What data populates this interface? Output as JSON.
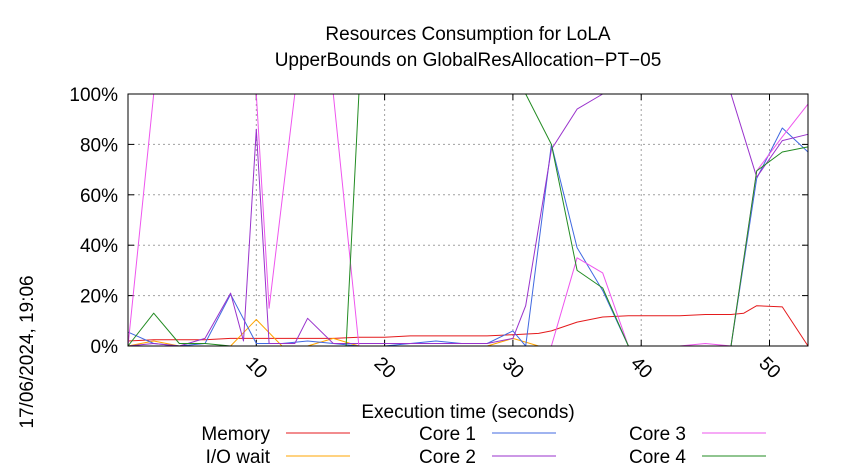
{
  "chart_data": {
    "type": "line",
    "title": "Resources Consumption for LoLA",
    "subtitle": "UpperBounds on GlobalResAllocation−PT−05",
    "xlabel": "Execution time (seconds)",
    "ylabel": "",
    "timestamp": "17/06/2024, 19:06",
    "xlim": [
      0,
      53
    ],
    "ylim": [
      0,
      100
    ],
    "xticks": [
      10,
      20,
      30,
      40,
      50
    ],
    "yticks": [
      0,
      20,
      40,
      60,
      80,
      100
    ],
    "ytick_labels": [
      "0%",
      "20%",
      "40%",
      "60%",
      "80%",
      "100%"
    ],
    "grid": true,
    "legend_position": "bottom",
    "series": [
      {
        "name": "Memory",
        "color": "#e41a1c",
        "x": [
          0,
          2,
          4,
          6,
          8,
          10,
          12,
          14,
          16,
          18,
          20,
          22,
          24,
          26,
          28,
          30,
          32,
          33,
          35,
          37,
          39,
          41,
          43,
          45,
          47,
          48,
          49,
          51,
          53
        ],
        "y": [
          2,
          2.5,
          2.5,
          2.5,
          3,
          3,
          3,
          3,
          3,
          3.5,
          3.5,
          4,
          4,
          4,
          4,
          4.5,
          5,
          6,
          9.5,
          11.5,
          12,
          12,
          12,
          12.5,
          12.5,
          13,
          16,
          15.5,
          0
        ]
      },
      {
        "name": "I/O wait",
        "color": "#ffa500",
        "x": [
          0,
          2,
          4,
          6,
          8,
          10,
          12,
          14,
          16,
          18,
          20,
          22,
          24,
          26,
          28,
          30,
          32,
          34,
          36,
          38,
          40,
          42,
          44,
          46,
          48,
          50,
          52,
          53
        ],
        "y": [
          0,
          2,
          0,
          0,
          0,
          10.5,
          0,
          0,
          3,
          0,
          0,
          0,
          0,
          0,
          0,
          3,
          0,
          0,
          0,
          0,
          0,
          0,
          0,
          0,
          0,
          0,
          0,
          0
        ]
      },
      {
        "name": "Core 1",
        "color": "#4169e1",
        "x": [
          0,
          2,
          4,
          6,
          8,
          10,
          12,
          14,
          16,
          18,
          20,
          22,
          24,
          26,
          28,
          30,
          31,
          33,
          35,
          37,
          39,
          41,
          43,
          45,
          47,
          49,
          51,
          53
        ],
        "y": [
          5.5,
          1,
          0,
          1,
          20.5,
          1,
          1,
          2,
          1,
          0,
          0,
          1,
          2,
          1,
          1,
          6,
          0,
          80,
          39,
          22,
          0,
          0,
          0,
          0,
          0,
          66.5,
          86.5,
          77
        ]
      },
      {
        "name": "Core 2",
        "color": "#9932cc",
        "x": [
          0,
          2,
          4,
          6,
          8,
          9,
          10,
          11,
          13,
          14,
          16,
          18,
          20,
          22,
          24,
          26,
          28,
          30,
          31,
          33,
          35,
          37,
          39,
          41,
          43,
          45,
          47,
          49,
          51,
          53
        ],
        "y": [
          0,
          1,
          0,
          3,
          21,
          2,
          86,
          1,
          1,
          11,
          1,
          1,
          1,
          1,
          1,
          1,
          1,
          3,
          16,
          78,
          94,
          100,
          100,
          100,
          100,
          100,
          100,
          67,
          81.5,
          84
        ]
      },
      {
        "name": "Core 3",
        "color": "#ee55ee",
        "x": [
          0,
          2,
          4,
          6,
          8,
          10,
          11,
          13,
          15,
          16,
          18,
          20,
          22,
          24,
          26,
          28,
          30,
          32,
          33,
          35,
          37,
          39,
          41,
          43,
          45,
          47,
          49,
          51,
          53
        ],
        "y": [
          0,
          100,
          100,
          100,
          100,
          100,
          15,
          100,
          100,
          100,
          0,
          0,
          0,
          0,
          0,
          0,
          0,
          0,
          0,
          35,
          29,
          0,
          0,
          0,
          1,
          0,
          69.5,
          83,
          96
        ]
      },
      {
        "name": "Core 4",
        "color": "#228b22",
        "x": [
          0,
          2,
          4,
          6,
          8,
          10,
          12,
          14,
          16,
          17,
          18,
          20,
          22,
          24,
          26,
          28,
          30,
          31,
          33,
          35,
          37,
          39,
          41,
          43,
          45,
          47,
          49,
          51,
          53
        ],
        "y": [
          0,
          13,
          1,
          1,
          0,
          0,
          0,
          0,
          0,
          0,
          100,
          100,
          100,
          100,
          100,
          100,
          100,
          100,
          80,
          30,
          23,
          0,
          0,
          0,
          0,
          0,
          69.5,
          77,
          79
        ]
      }
    ]
  }
}
